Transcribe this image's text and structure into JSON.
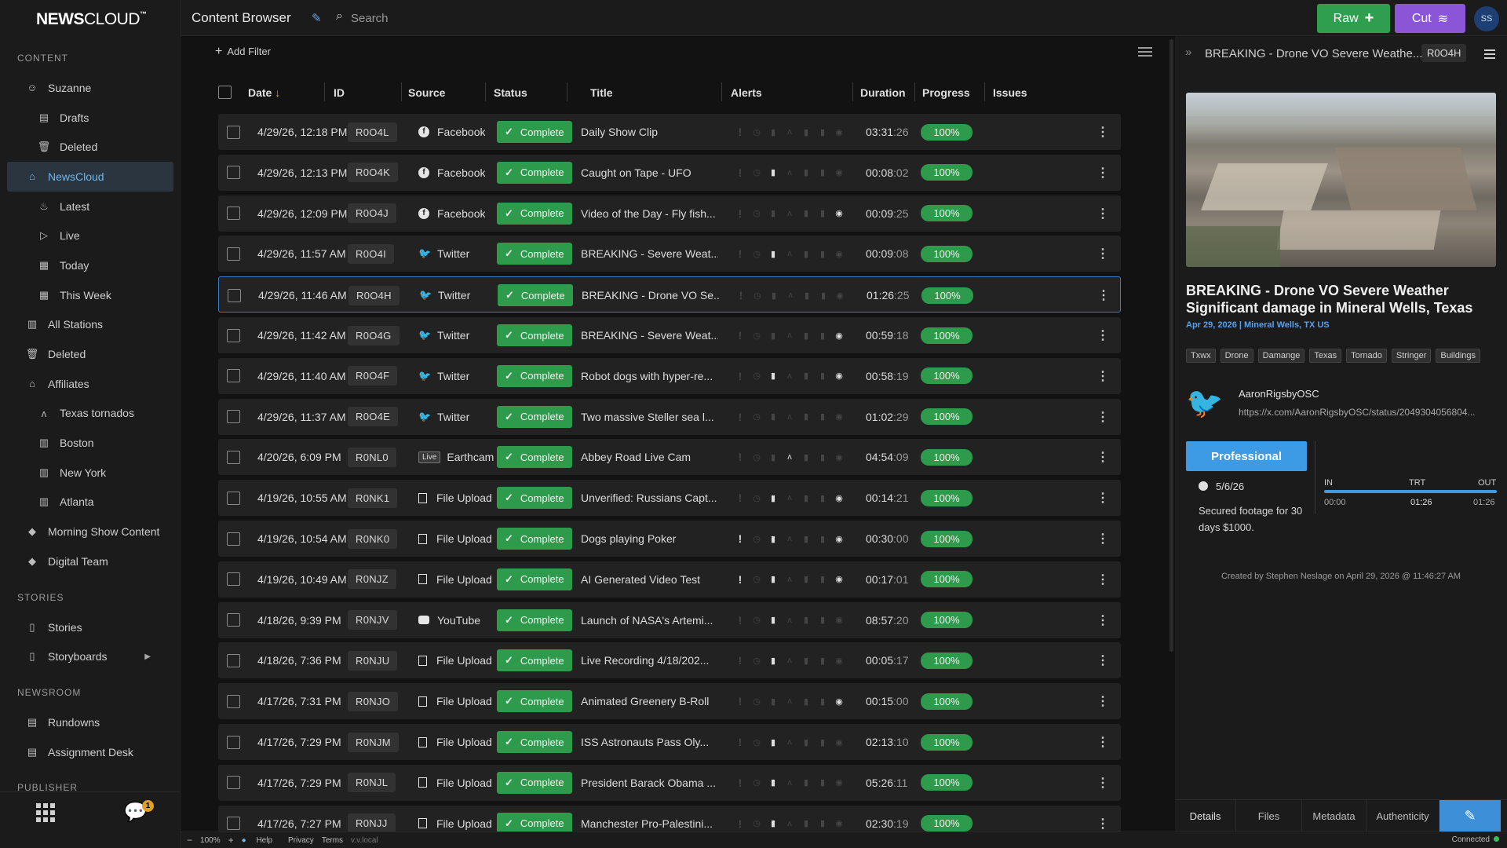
{
  "app": {
    "logo_bold": "NEWS",
    "logo_light": "CLOUD",
    "page_title": "Content Browser",
    "search_placeholder": "Search",
    "btn_raw": "Raw",
    "btn_cut": "Cut",
    "avatar": "SS"
  },
  "sidebar": {
    "section_content": "CONTENT",
    "section_stories": "STORIES",
    "section_newsroom": "NEWSROOM",
    "section_publisher": "PUBLISHER",
    "content_items": [
      {
        "label": "Suzanne",
        "icon": "user-icon",
        "glyph": "☺",
        "sub": false,
        "active": false
      },
      {
        "label": "Drafts",
        "icon": "document-icon",
        "glyph": "▤",
        "sub": true,
        "active": false
      },
      {
        "label": "Deleted",
        "icon": "trash-icon",
        "glyph": "🗑",
        "sub": true,
        "active": false
      },
      {
        "label": "NewsCloud",
        "icon": "cloud-home-icon",
        "glyph": "⌂",
        "sub": false,
        "active": true
      },
      {
        "label": "Latest",
        "icon": "flame-icon",
        "glyph": "♨",
        "sub": true,
        "active": false
      },
      {
        "label": "Live",
        "icon": "play-icon",
        "glyph": "▷",
        "sub": true,
        "active": false
      },
      {
        "label": "Today",
        "icon": "calendar-icon",
        "glyph": "▦",
        "sub": true,
        "active": false
      },
      {
        "label": "This Week",
        "icon": "calendar-icon",
        "glyph": "▦",
        "sub": true,
        "active": false
      },
      {
        "label": "All Stations",
        "icon": "building-icon",
        "glyph": "▥",
        "sub": false,
        "active": false
      },
      {
        "label": "Deleted",
        "icon": "trash-icon",
        "glyph": "🗑",
        "sub": false,
        "active": false
      },
      {
        "label": "Affiliates",
        "icon": "home-icon",
        "glyph": "⌂",
        "sub": false,
        "active": false
      },
      {
        "label": "Texas tornados",
        "icon": "antenna-icon",
        "glyph": "ᴧ",
        "sub": true,
        "active": false
      },
      {
        "label": "Boston",
        "icon": "building-icon",
        "glyph": "▥",
        "sub": true,
        "active": false
      },
      {
        "label": "New York",
        "icon": "building-icon",
        "glyph": "▥",
        "sub": true,
        "active": false
      },
      {
        "label": "Atlanta",
        "icon": "building-icon",
        "glyph": "▥",
        "sub": true,
        "active": false
      },
      {
        "label": "Morning Show Content",
        "icon": "tag-icon",
        "glyph": "◆",
        "sub": false,
        "active": false
      },
      {
        "label": "Digital Team",
        "icon": "tag-icon",
        "glyph": "◆",
        "sub": false,
        "active": false
      }
    ],
    "stories_items": [
      {
        "label": "Stories",
        "icon": "book-icon",
        "glyph": "▯",
        "chev": false
      },
      {
        "label": "Storyboards",
        "icon": "storyboard-icon",
        "glyph": "▯",
        "chev": true
      }
    ],
    "newsroom_items": [
      {
        "label": "Rundowns",
        "icon": "list-icon",
        "glyph": "▤"
      },
      {
        "label": "Assignment Desk",
        "icon": "clipboard-icon",
        "glyph": "▤"
      }
    ],
    "chat_badge": "1"
  },
  "table": {
    "add_filter": "Add Filter",
    "columns": {
      "date": "Date",
      "id": "ID",
      "source": "Source",
      "status": "Status",
      "title": "Title",
      "alerts": "Alerts",
      "duration": "Duration",
      "progress": "Progress",
      "issues": "Issues"
    },
    "rows": [
      {
        "date": "4/29/26, 12:18 PM",
        "id": "R0O4L",
        "source": "Facebook",
        "src": "fb",
        "status": "Complete",
        "title": "Daily Show Clip",
        "alerts": [
          0,
          0,
          0,
          0,
          0,
          0,
          0
        ],
        "dur": "03:31",
        "ms": ":26",
        "progress": "100%"
      },
      {
        "date": "4/29/26, 12:13 PM",
        "id": "R0O4K",
        "source": "Facebook",
        "src": "fb",
        "status": "Complete",
        "title": "Caught on Tape - UFO",
        "alerts": [
          0,
          0,
          1,
          0,
          0,
          0,
          0
        ],
        "dur": "00:08",
        "ms": ":02",
        "progress": "100%"
      },
      {
        "date": "4/29/26, 12:09 PM",
        "id": "R0O4J",
        "source": "Facebook",
        "src": "fb",
        "status": "Complete",
        "title": "Video of the Day - Fly fish...",
        "alerts": [
          0,
          0,
          0,
          0,
          0,
          0,
          1
        ],
        "dur": "00:09",
        "ms": ":25",
        "progress": "100%"
      },
      {
        "date": "4/29/26, 11:57 AM",
        "id": "R0O4I",
        "source": "Twitter",
        "src": "tw",
        "status": "Complete",
        "title": "BREAKING - Severe Weat...",
        "alerts": [
          0,
          0,
          1,
          0,
          0,
          0,
          0
        ],
        "dur": "00:09",
        "ms": ":08",
        "progress": "100%"
      },
      {
        "date": "4/29/26, 11:46 AM",
        "id": "R0O4H",
        "source": "Twitter",
        "src": "tw",
        "status": "Complete",
        "title": "BREAKING - Drone VO Se...",
        "alerts": [
          0,
          0,
          0,
          0,
          0,
          0,
          0
        ],
        "dur": "01:26",
        "ms": ":25",
        "progress": "100%",
        "selected": true
      },
      {
        "date": "4/29/26, 11:42 AM",
        "id": "R0O4G",
        "source": "Twitter",
        "src": "tw",
        "status": "Complete",
        "title": "BREAKING - Severe Weat...",
        "alerts": [
          0,
          0,
          0,
          0,
          0,
          0,
          1
        ],
        "dur": "00:59",
        "ms": ":18",
        "progress": "100%"
      },
      {
        "date": "4/29/26, 11:40 AM",
        "id": "R0O4F",
        "source": "Twitter",
        "src": "tw",
        "status": "Complete",
        "title": "Robot dogs with hyper-re...",
        "alerts": [
          0,
          0,
          1,
          0,
          0,
          0,
          1
        ],
        "dur": "00:58",
        "ms": ":19",
        "progress": "100%"
      },
      {
        "date": "4/29/26, 11:37 AM",
        "id": "R0O4E",
        "source": "Twitter",
        "src": "tw",
        "status": "Complete",
        "title": "Two massive Steller sea l...",
        "alerts": [
          0,
          0,
          0,
          0,
          0,
          0,
          0
        ],
        "dur": "01:02",
        "ms": ":29",
        "progress": "100%"
      },
      {
        "date": "4/20/26, 6:09 PM",
        "id": "R0NL0",
        "source": "Earthcam",
        "src": "live",
        "status": "Complete",
        "title": "Abbey Road Live Cam",
        "alerts": [
          0,
          0,
          0,
          1,
          0,
          0,
          0
        ],
        "dur": "04:54",
        "ms": ":09",
        "progress": "100%"
      },
      {
        "date": "4/19/26, 10:55 AM",
        "id": "R0NK1",
        "source": "File Upload",
        "src": "file",
        "status": "Complete",
        "title": "Unverified: Russians Capt...",
        "alerts": [
          0,
          0,
          1,
          0,
          0,
          0,
          1
        ],
        "dur": "00:14",
        "ms": ":21",
        "progress": "100%"
      },
      {
        "date": "4/19/26, 10:54 AM",
        "id": "R0NK0",
        "source": "File Upload",
        "src": "file",
        "status": "Complete",
        "title": "Dogs playing Poker",
        "alerts": [
          1,
          0,
          1,
          0,
          0,
          0,
          1
        ],
        "dur": "00:30",
        "ms": ":00",
        "progress": "100%"
      },
      {
        "date": "4/19/26, 10:49 AM",
        "id": "R0NJZ",
        "source": "File Upload",
        "src": "file",
        "status": "Complete",
        "title": "AI Generated Video Test",
        "alerts": [
          1,
          0,
          1,
          0,
          0,
          0,
          1
        ],
        "dur": "00:17",
        "ms": ":01",
        "progress": "100%"
      },
      {
        "date": "4/18/26, 9:39 PM",
        "id": "R0NJV",
        "source": "YouTube",
        "src": "yt",
        "status": "Complete",
        "title": "Launch of NASA's Artemi...",
        "alerts": [
          0,
          0,
          1,
          0,
          0,
          0,
          0
        ],
        "dur": "08:57",
        "ms": ":20",
        "progress": "100%"
      },
      {
        "date": "4/18/26, 7:36 PM",
        "id": "R0NJU",
        "source": "File Upload",
        "src": "file",
        "status": "Complete",
        "title": "Live Recording 4/18/202...",
        "alerts": [
          0,
          0,
          1,
          0,
          0,
          0,
          0
        ],
        "dur": "00:05",
        "ms": ":17",
        "progress": "100%"
      },
      {
        "date": "4/17/26, 7:31 PM",
        "id": "R0NJO",
        "source": "File Upload",
        "src": "file",
        "status": "Complete",
        "title": "Animated Greenery B-Roll",
        "alerts": [
          0,
          0,
          0,
          0,
          0,
          0,
          1
        ],
        "dur": "00:15",
        "ms": ":00",
        "progress": "100%"
      },
      {
        "date": "4/17/26, 7:29 PM",
        "id": "R0NJM",
        "source": "File Upload",
        "src": "file",
        "status": "Complete",
        "title": "ISS Astronauts Pass Oly...",
        "alerts": [
          0,
          0,
          1,
          0,
          0,
          0,
          0
        ],
        "dur": "02:13",
        "ms": ":10",
        "progress": "100%"
      },
      {
        "date": "4/17/26, 7:29 PM",
        "id": "R0NJL",
        "source": "File Upload",
        "src": "file",
        "status": "Complete",
        "title": "President Barack Obama ...",
        "alerts": [
          0,
          0,
          1,
          0,
          0,
          0,
          0
        ],
        "dur": "05:26",
        "ms": ":11",
        "progress": "100%"
      },
      {
        "date": "4/17/26, 7:27 PM",
        "id": "R0NJJ",
        "source": "File Upload",
        "src": "file",
        "status": "Complete",
        "title": "Manchester Pro-Palestini...",
        "alerts": [
          0,
          0,
          1,
          0,
          0,
          0,
          0
        ],
        "dur": "02:30",
        "ms": ":19",
        "progress": "100%"
      }
    ]
  },
  "detail": {
    "header_title": "BREAKING - Drone VO Severe Weathe...",
    "header_id": "R0O4H",
    "title": "BREAKING - Drone VO Severe Weather Significant damage in Mineral Wells, Texas",
    "subtitle": "Apr 29, 2026 | Mineral Wells, TX US",
    "tags": [
      "Txwx",
      "Drone",
      "Damange",
      "Texas",
      "Tornado",
      "Stringer",
      "Buildings"
    ],
    "twitter_user": "AaronRigsbyOSC",
    "twitter_url": "https://x.com/AaronRigsbyOSC/status/2049304056804...",
    "license_button": "Professional",
    "license_date": "5/6/26",
    "license_note": "Secured footage for 30 days $1000.",
    "timeline": {
      "in_label": "IN",
      "trt_label": "TRT",
      "out_label": "OUT",
      "in": "00:00",
      "trt": "01:26",
      "out": "01:26"
    },
    "created": "Created by Stephen Neslage on April 29, 2026 @ 11:46:27 AM",
    "tabs": [
      "Details",
      "Files",
      "Metadata",
      "Authenticity"
    ]
  },
  "statusbar": {
    "zoom": "100%",
    "help": "Help",
    "privacy": "Privacy",
    "terms": "Terms",
    "host": "v.v.local",
    "connection": "Connected"
  },
  "colors": {
    "accent": "#3d9ae4",
    "success": "#2e9a4c",
    "raw_button": "#2f9e4f",
    "cut_button": "#8a55d6",
    "twitter": "#1d9bf0"
  }
}
